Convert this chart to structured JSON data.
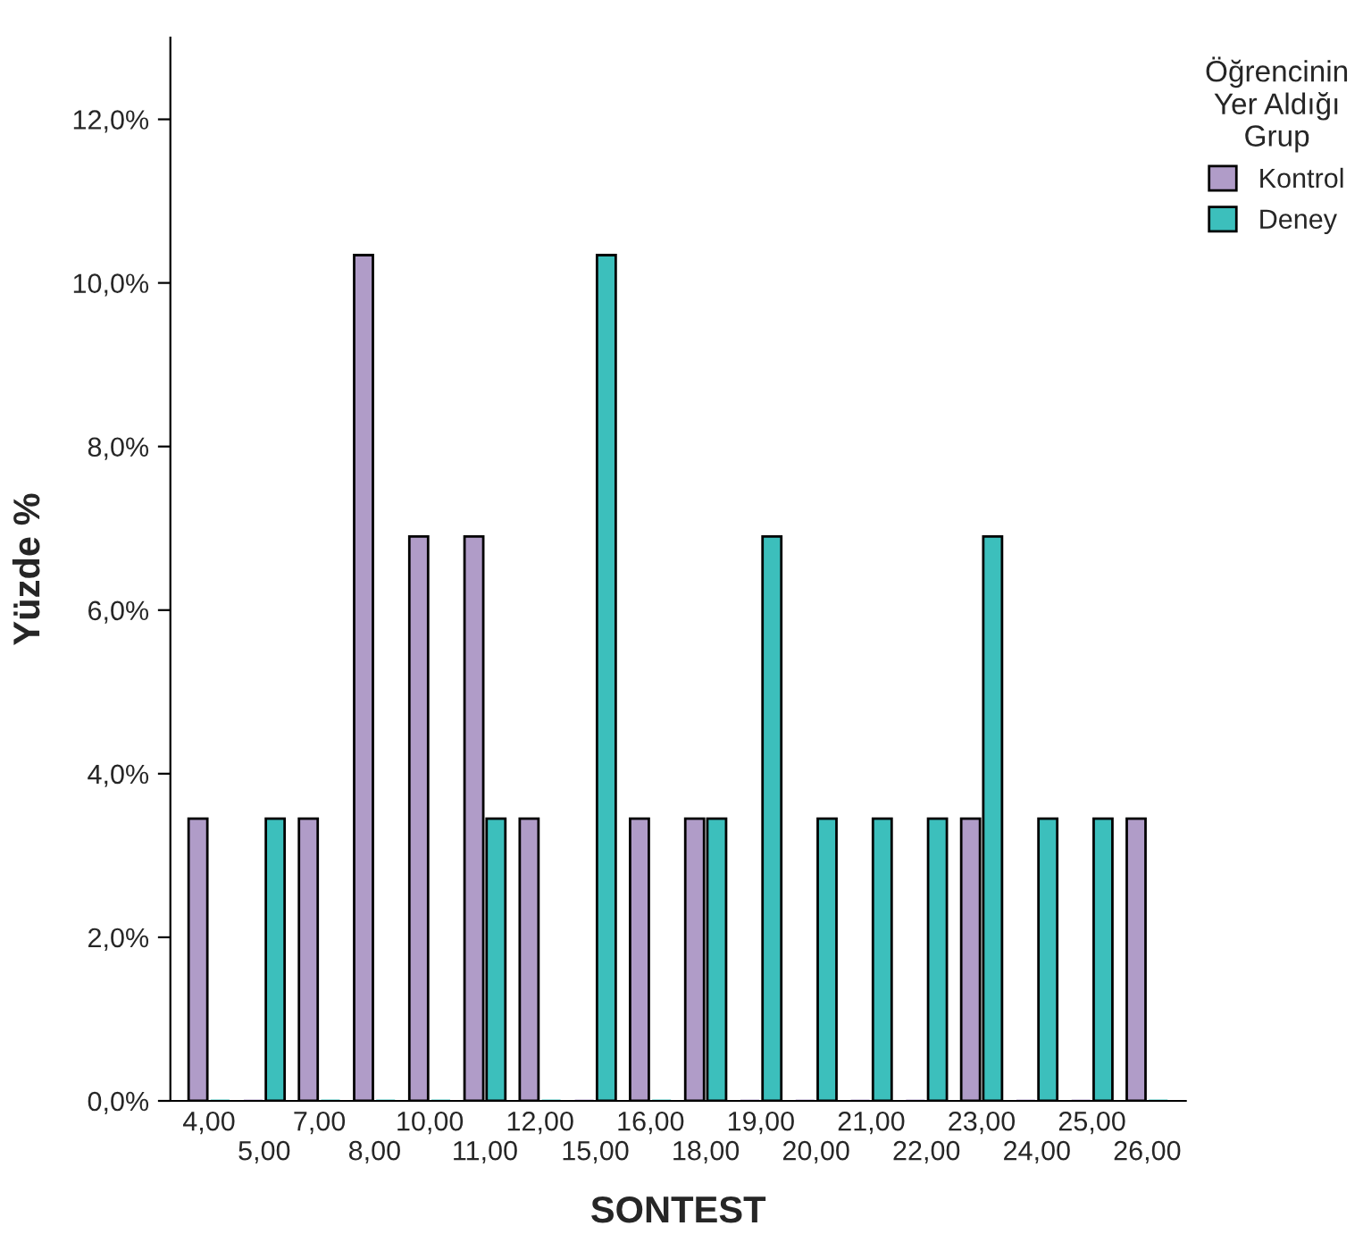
{
  "chart_data": {
    "type": "bar",
    "xlabel": "SONTEST",
    "ylabel": "Yüzde %",
    "legend_title": "Öğrencinin\nYer Aldığı\nGrup",
    "categories": [
      "4,00",
      "5,00",
      "7,00",
      "8,00",
      "10,00",
      "11,00",
      "12,00",
      "15,00",
      "16,00",
      "18,00",
      "19,00",
      "20,00",
      "21,00",
      "22,00",
      "23,00",
      "24,00",
      "25,00",
      "26,00"
    ],
    "series": [
      {
        "name": "Kontrol",
        "color": "#b09cc8",
        "values": [
          3.45,
          0,
          3.45,
          10.34,
          6.9,
          6.9,
          3.45,
          0,
          3.45,
          3.45,
          0,
          0,
          0,
          0,
          3.45,
          0,
          0,
          3.45
        ]
      },
      {
        "name": "Deney",
        "color": "#3cbfbc",
        "values": [
          0,
          3.45,
          0,
          0,
          0,
          3.45,
          0,
          10.34,
          0,
          3.45,
          6.9,
          3.45,
          3.45,
          3.45,
          6.9,
          3.45,
          3.45,
          0
        ]
      }
    ],
    "ylim": [
      0,
      13
    ],
    "yticks": [
      {
        "value": 0,
        "label": "0,0%"
      },
      {
        "value": 2,
        "label": "2,0%"
      },
      {
        "value": 4,
        "label": "4,0%"
      },
      {
        "value": 6,
        "label": "6,0%"
      },
      {
        "value": 8,
        "label": "8,0%"
      },
      {
        "value": 10,
        "label": "10,0%"
      },
      {
        "value": 12,
        "label": "12,0%"
      }
    ],
    "grid": false,
    "legend": "top right"
  }
}
